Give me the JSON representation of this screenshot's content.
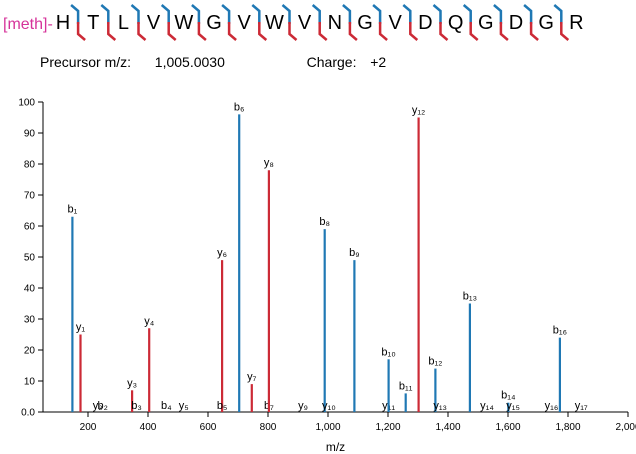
{
  "header": {
    "modification": "[meth]-",
    "sequence": [
      "H",
      "T",
      "L",
      "V",
      "W",
      "G",
      "V",
      "W",
      "V",
      "N",
      "G",
      "V",
      "D",
      "Q",
      "G",
      "D",
      "G",
      "R"
    ],
    "b_cleavages": [
      1,
      2,
      3,
      4,
      5,
      6,
      7,
      8,
      9,
      10,
      11,
      12,
      13,
      14,
      15,
      16,
      17
    ],
    "y_cleavages": [
      1,
      2,
      3,
      4,
      5,
      6,
      7,
      8,
      9,
      10,
      11,
      12,
      13,
      14,
      15,
      16,
      17
    ],
    "colors": {
      "modification": "#d6339a",
      "b_ion": "#1f78b4",
      "y_ion": "#cc2a36"
    }
  },
  "precursor": {
    "mz_label": "Precursor m/z:",
    "mz_value": "1,005.0030",
    "charge_label": "Charge:",
    "charge_value": "+2"
  },
  "chart_data": {
    "type": "bar",
    "xlabel": "m/z",
    "ylabel": "",
    "xlim": [
      50,
      2000
    ],
    "ylim": [
      0,
      100
    ],
    "xticks": [
      200,
      400,
      600,
      800,
      1000,
      1200,
      1400,
      1600,
      1800,
      2000
    ],
    "xtick_labels": [
      "200",
      "400",
      "600",
      "800",
      "1,000",
      "1,200",
      "1,400",
      "1,600",
      "1,800",
      "2,000"
    ],
    "yticks": [
      0,
      10,
      20,
      30,
      40,
      50,
      60,
      70,
      80,
      90,
      100
    ],
    "ytick_labels": [
      "0.0",
      "10",
      "20",
      "30",
      "40",
      "50",
      "60",
      "70",
      "80",
      "90",
      "100"
    ],
    "peaks": [
      {
        "label": "b1",
        "type": "b",
        "mz": 148,
        "intensity": 63
      },
      {
        "label": "y1",
        "type": "y",
        "mz": 175,
        "intensity": 25
      },
      {
        "label": "y2",
        "type": "y",
        "mz": 232,
        "intensity": 0
      },
      {
        "label": "b2",
        "type": "b",
        "mz": 249,
        "intensity": 0
      },
      {
        "label": "y3",
        "type": "y",
        "mz": 347,
        "intensity": 7
      },
      {
        "label": "b3",
        "type": "b",
        "mz": 362,
        "intensity": 0
      },
      {
        "label": "y4",
        "type": "y",
        "mz": 404,
        "intensity": 27
      },
      {
        "label": "b4",
        "type": "b",
        "mz": 461,
        "intensity": 0
      },
      {
        "label": "y5",
        "type": "y",
        "mz": 519,
        "intensity": 0
      },
      {
        "label": "y6",
        "type": "y",
        "mz": 647,
        "intensity": 49
      },
      {
        "label": "b5",
        "type": "b",
        "mz": 647,
        "intensity": 0
      },
      {
        "label": "b6",
        "type": "b",
        "mz": 704,
        "intensity": 96
      },
      {
        "label": "y7",
        "type": "y",
        "mz": 746,
        "intensity": 9
      },
      {
        "label": "b7",
        "type": "b",
        "mz": 803,
        "intensity": 0
      },
      {
        "label": "y8",
        "type": "y",
        "mz": 803,
        "intensity": 78
      },
      {
        "label": "y9",
        "type": "y",
        "mz": 917,
        "intensity": 0
      },
      {
        "label": "b8",
        "type": "b",
        "mz": 989,
        "intensity": 59
      },
      {
        "label": "y10",
        "type": "y",
        "mz": 1003,
        "intensity": 0
      },
      {
        "label": "b9",
        "type": "b",
        "mz": 1088,
        "intensity": 49
      },
      {
        "label": "y11",
        "type": "y",
        "mz": 1202,
        "intensity": 0
      },
      {
        "label": "b10",
        "type": "b",
        "mz": 1202,
        "intensity": 17
      },
      {
        "label": "b11",
        "type": "b",
        "mz": 1259,
        "intensity": 6
      },
      {
        "label": "y12",
        "type": "y",
        "mz": 1302,
        "intensity": 95
      },
      {
        "label": "b12",
        "type": "b",
        "mz": 1358,
        "intensity": 14
      },
      {
        "label": "y13",
        "type": "y",
        "mz": 1374,
        "intensity": 0
      },
      {
        "label": "b13",
        "type": "b",
        "mz": 1473,
        "intensity": 35
      },
      {
        "label": "y14",
        "type": "y",
        "mz": 1530,
        "intensity": 0
      },
      {
        "label": "b14",
        "type": "b",
        "mz": 1601,
        "intensity": 3
      },
      {
        "label": "y15",
        "type": "y",
        "mz": 1617,
        "intensity": 0
      },
      {
        "label": "y16",
        "type": "y",
        "mz": 1745,
        "intensity": 0
      },
      {
        "label": "b16",
        "type": "b",
        "mz": 1773,
        "intensity": 24
      },
      {
        "label": "y17",
        "type": "y",
        "mz": 1844,
        "intensity": 0
      }
    ]
  }
}
